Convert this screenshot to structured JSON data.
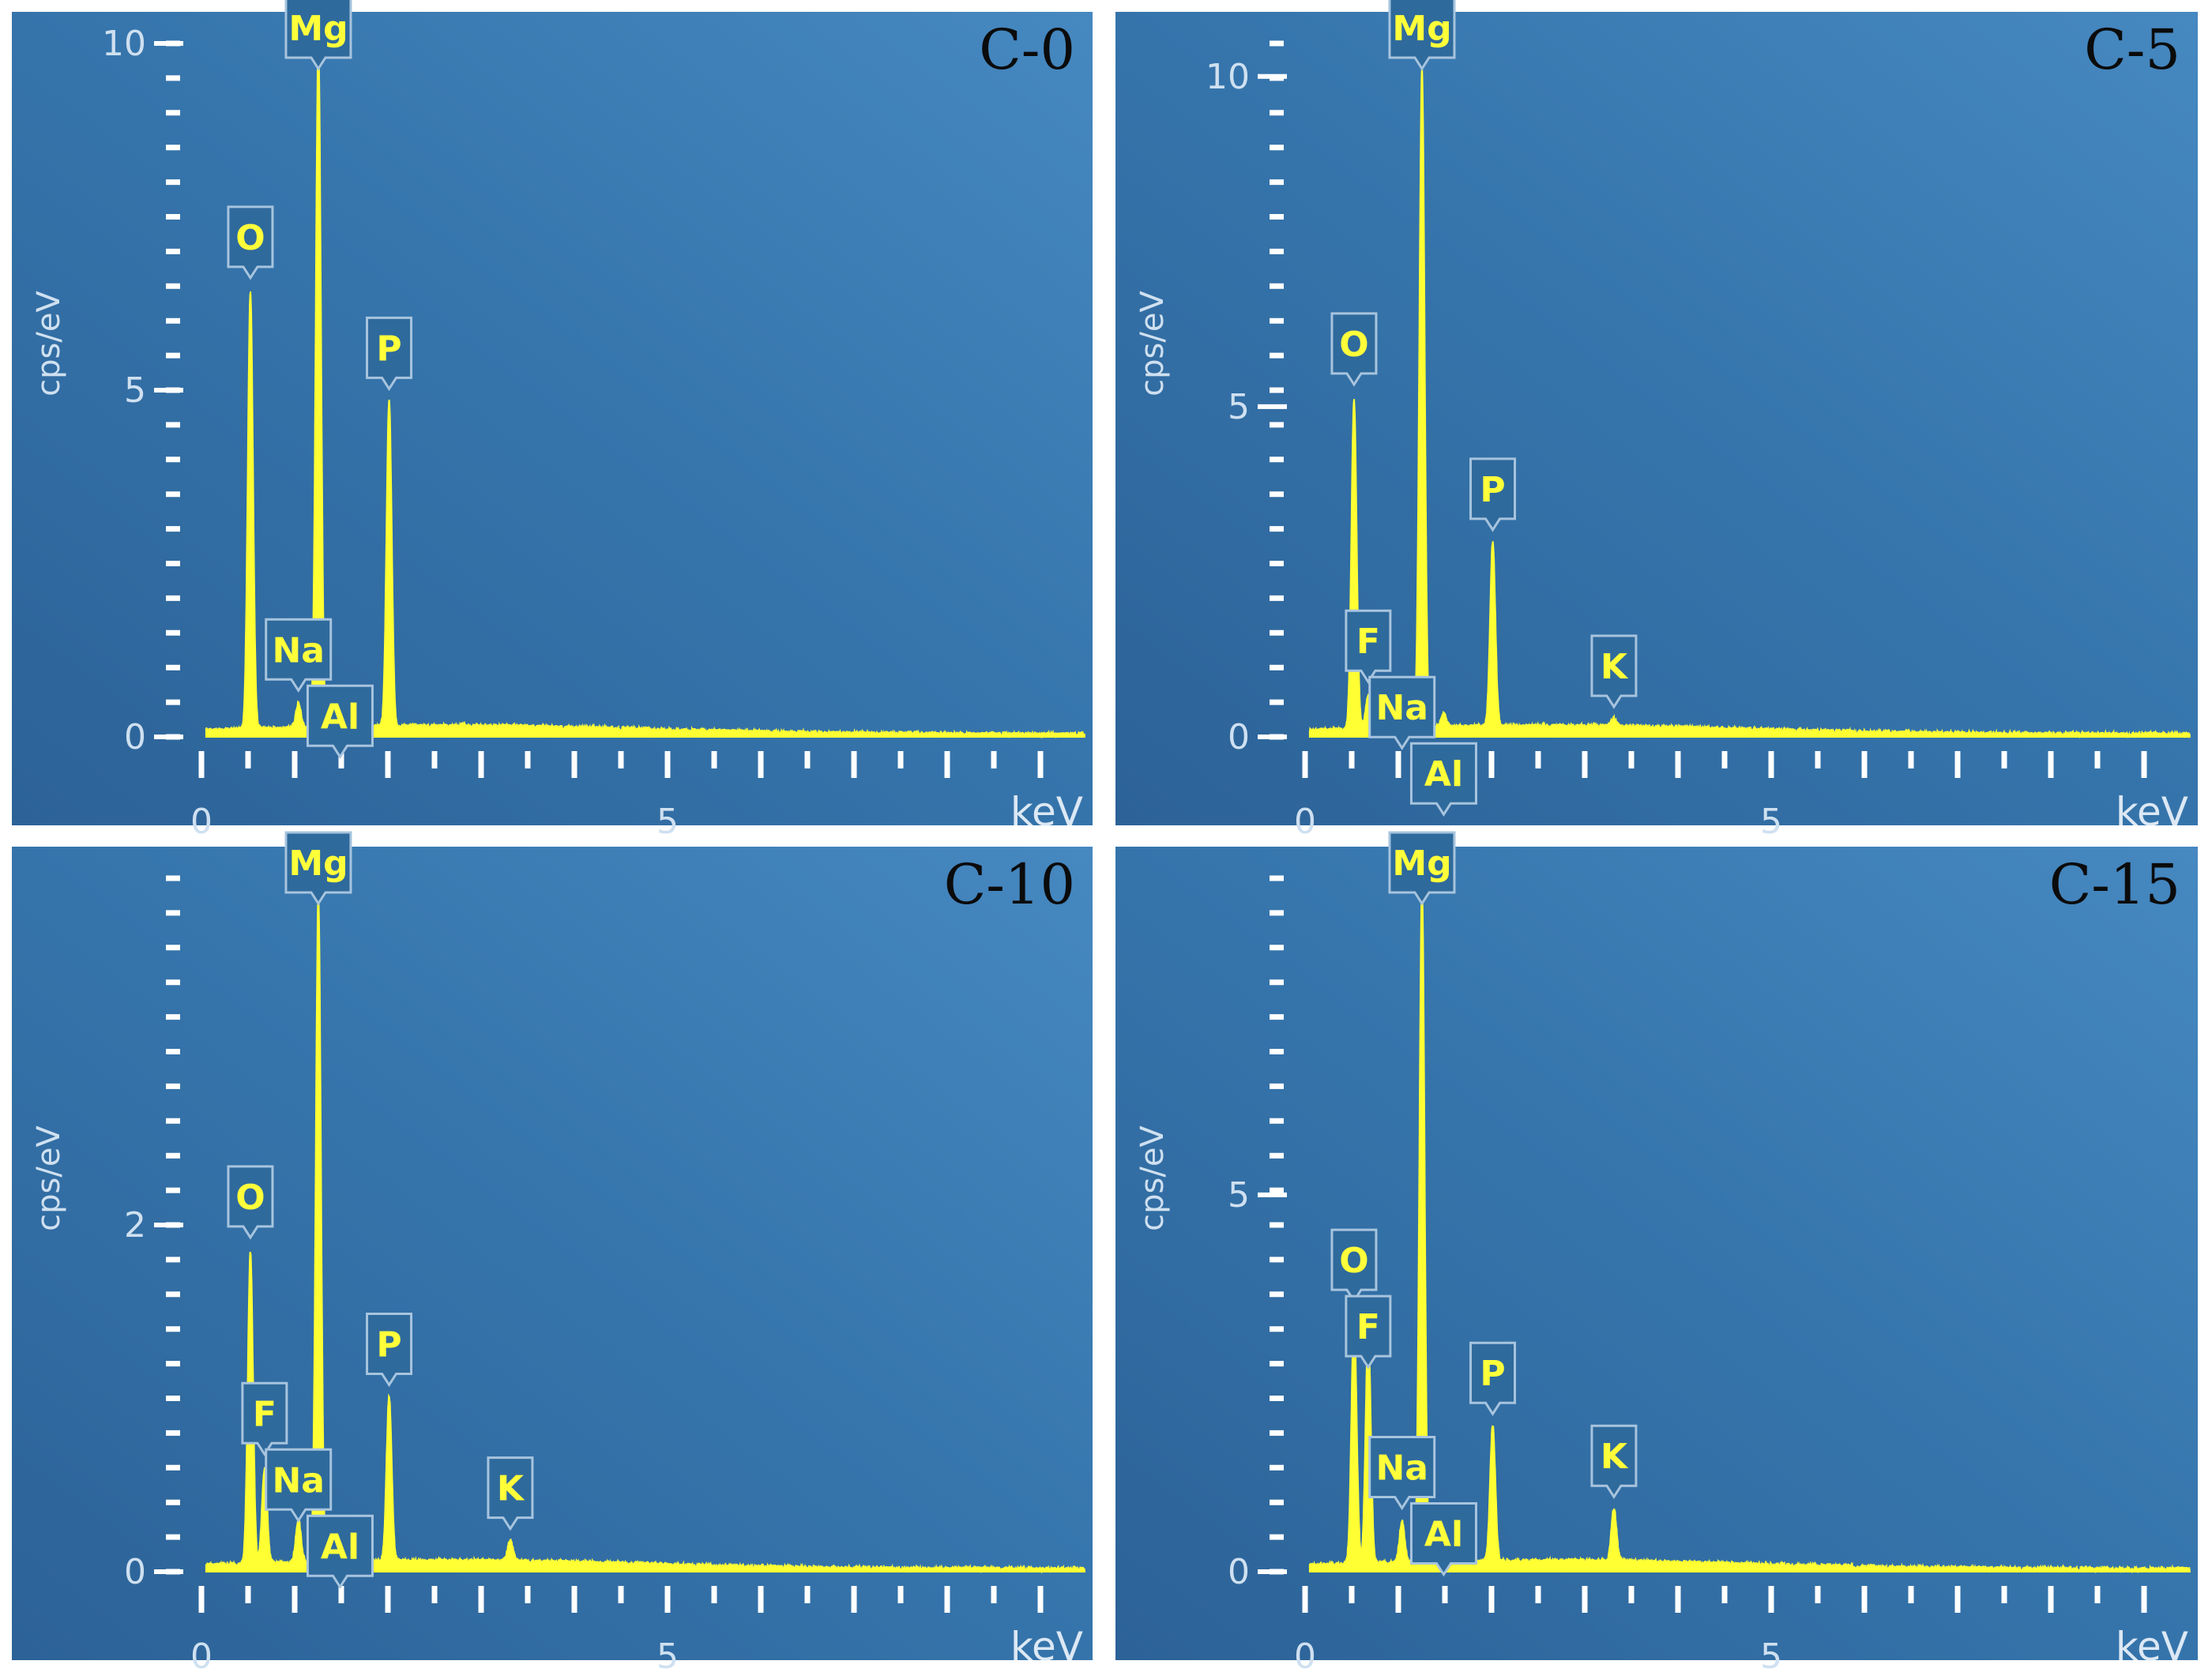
{
  "chart_data": [
    {
      "type": "line",
      "title": "C-0",
      "ylabel": "cps/eV",
      "xlabel": "keV",
      "xlim": [
        0,
        10
      ],
      "ylim": [
        0,
        10
      ],
      "xticks": [
        {
          "v": 0,
          "label": "0"
        },
        {
          "v": 5,
          "label": "5"
        }
      ],
      "yticks": [
        {
          "v": 0,
          "label": "0"
        },
        {
          "v": 5,
          "label": "5"
        },
        {
          "v": 10,
          "label": "10"
        }
      ],
      "peaks": [
        {
          "name": "O",
          "energy": 0.525,
          "height": 6.3
        },
        {
          "name": "Na",
          "energy": 1.04,
          "height": 0.35
        },
        {
          "name": "Mg",
          "energy": 1.254,
          "height": 9.9
        },
        {
          "name": "Al",
          "energy": 1.487,
          "height": 0.12
        },
        {
          "name": "P",
          "energy": 2.013,
          "height": 4.7
        }
      ]
    },
    {
      "type": "line",
      "title": "C-5",
      "ylabel": "cps/eV",
      "xlabel": "keV",
      "xlim": [
        0,
        10
      ],
      "ylim": [
        0,
        10.5
      ],
      "xticks": [
        {
          "v": 0,
          "label": "0"
        },
        {
          "v": 5,
          "label": "5"
        }
      ],
      "yticks": [
        {
          "v": 0,
          "label": "0"
        },
        {
          "v": 5,
          "label": "5"
        },
        {
          "v": 10,
          "label": "10"
        }
      ],
      "peaks": [
        {
          "name": "O",
          "energy": 0.525,
          "height": 5.0
        },
        {
          "name": "F",
          "energy": 0.677,
          "height": 0.5
        },
        {
          "name": "Na",
          "energy": 1.04,
          "height": 0.45
        },
        {
          "name": "Mg",
          "energy": 1.254,
          "height": 10.0
        },
        {
          "name": "Al",
          "energy": 1.487,
          "height": 0.2
        },
        {
          "name": "P",
          "energy": 2.013,
          "height": 2.8
        },
        {
          "name": "K",
          "energy": 3.313,
          "height": 0.12
        }
      ]
    },
    {
      "type": "line",
      "title": "C-10",
      "ylabel": "cps/eV",
      "xlabel": "keV",
      "xlim": [
        0,
        10
      ],
      "ylim": [
        0,
        4
      ],
      "xticks": [
        {
          "v": 0,
          "label": "0"
        },
        {
          "v": 5,
          "label": "5"
        }
      ],
      "yticks": [
        {
          "v": 0,
          "label": "0"
        },
        {
          "v": 2,
          "label": "2"
        }
      ],
      "peaks": [
        {
          "name": "O",
          "energy": 0.525,
          "height": 1.8
        },
        {
          "name": "F",
          "energy": 0.677,
          "height": 0.55
        },
        {
          "name": "Na",
          "energy": 1.04,
          "height": 0.25
        },
        {
          "name": "Mg",
          "energy": 1.254,
          "height": 3.85
        },
        {
          "name": "Al",
          "energy": 1.487,
          "height": 0.15
        },
        {
          "name": "P",
          "energy": 2.013,
          "height": 0.95
        },
        {
          "name": "K",
          "energy": 3.313,
          "height": 0.12
        }
      ]
    },
    {
      "type": "line",
      "title": "C-15",
      "ylabel": "cps/eV",
      "xlabel": "keV",
      "xlim": [
        0,
        10
      ],
      "ylim": [
        0,
        9.2
      ],
      "xticks": [
        {
          "v": 0,
          "label": "0"
        },
        {
          "v": 5,
          "label": "5"
        }
      ],
      "yticks": [
        {
          "v": 0,
          "label": "0"
        },
        {
          "v": 5,
          "label": "5"
        }
      ],
      "peaks": [
        {
          "name": "O",
          "energy": 0.525,
          "height": 3.3
        },
        {
          "name": "F",
          "energy": 0.677,
          "height": 3.1
        },
        {
          "name": "Na",
          "energy": 1.04,
          "height": 0.55
        },
        {
          "name": "Mg",
          "energy": 1.254,
          "height": 9.0
        },
        {
          "name": "Al",
          "energy": 1.487,
          "height": 0.3
        },
        {
          "name": "P",
          "energy": 2.013,
          "height": 1.8
        },
        {
          "name": "K",
          "energy": 3.313,
          "height": 0.7
        }
      ]
    }
  ]
}
